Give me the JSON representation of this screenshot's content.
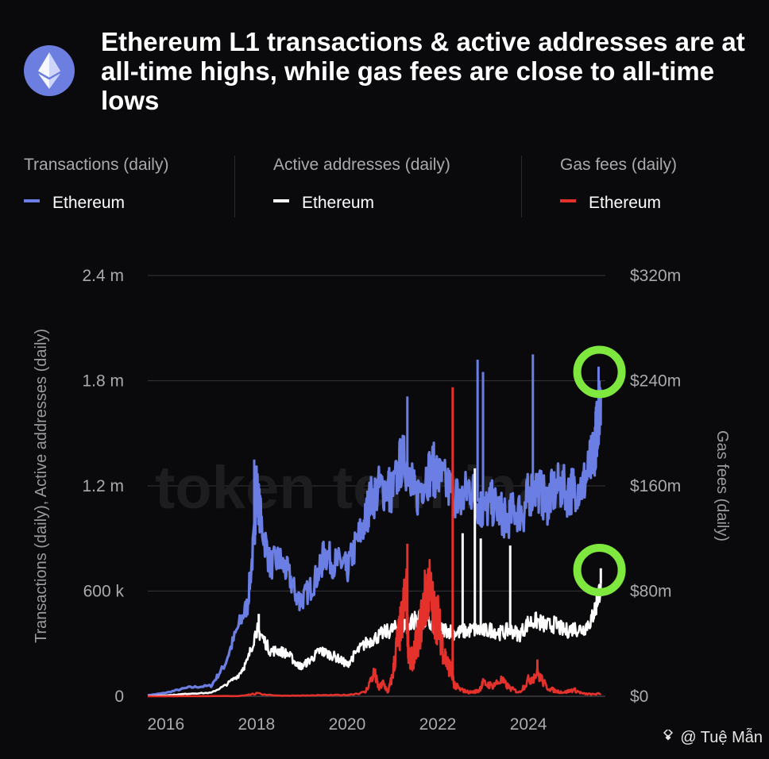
{
  "header": {
    "title": "Ethereum L1 transactions & active addresses are at all-time highs, while gas fees are close to all-time lows",
    "logo_icon": "ethereum-icon",
    "logo_color": "#6c7fe0"
  },
  "legend": {
    "groups": [
      {
        "title": "Transactions (daily)",
        "item": "Ethereum",
        "color": "#6b7ee3"
      },
      {
        "title": "Active addresses (daily)",
        "item": "Ethereum",
        "color": "#ffffff"
      },
      {
        "title": "Gas fees (daily)",
        "item": "Ethereum",
        "color": "#e5312c"
      }
    ]
  },
  "watermark": {
    "text": "token terminal"
  },
  "author": {
    "text": "@ Tuệ Mẫn",
    "icon": "binance-square-icon"
  },
  "highlight": {
    "color": "#7ee83f"
  },
  "chart_data": {
    "type": "line",
    "title": "Ethereum L1 transactions & active addresses are at all-time highs, while gas fees are close to all-time lows",
    "ylabel": "Transactions (daily), Active addresses (daily)",
    "y2label": "Gas fees (daily)",
    "x_ticks": [
      "2016",
      "2018",
      "2020",
      "2022",
      "2024"
    ],
    "y_ticks": [
      "0",
      "600 k",
      "1.2 m",
      "1.8 m",
      "2.4 m"
    ],
    "y2_ticks": [
      "$0",
      "$80m",
      "$160m",
      "$240m",
      "$320m"
    ],
    "ylim": [
      0,
      2400000
    ],
    "y2lim": [
      0,
      320000000
    ],
    "xlim": [
      2015.6,
      2025.7
    ],
    "grid": true,
    "legend_position": "top",
    "series": [
      {
        "name": "Transactions (daily) — Ethereum",
        "axis": "left",
        "color": "#6b7ee3",
        "x": [
          2015.6,
          2016.0,
          2016.5,
          2017.0,
          2017.3,
          2017.6,
          2017.8,
          2017.95,
          2018.0,
          2018.1,
          2018.3,
          2018.5,
          2018.7,
          2018.9,
          2019.0,
          2019.2,
          2019.4,
          2019.5,
          2019.7,
          2019.9,
          2020.0,
          2020.2,
          2020.4,
          2020.5,
          2020.7,
          2020.9,
          2021.0,
          2021.2,
          2021.4,
          2021.5,
          2021.7,
          2021.9,
          2022.0,
          2022.2,
          2022.4,
          2022.5,
          2022.7,
          2022.9,
          2023.0,
          2023.2,
          2023.4,
          2023.5,
          2023.7,
          2023.9,
          2024.0,
          2024.2,
          2024.4,
          2024.5,
          2024.7,
          2024.9,
          2025.0,
          2025.2,
          2025.35,
          2025.45,
          2025.5,
          2025.55,
          2025.6
        ],
        "values": [
          5000,
          20000,
          50000,
          60000,
          180000,
          400000,
          520000,
          900000,
          1200000,
          1000000,
          750000,
          780000,
          700000,
          560000,
          550000,
          620000,
          720000,
          820000,
          760000,
          760000,
          720000,
          870000,
          1000000,
          1120000,
          1180000,
          1200000,
          1150000,
          1350000,
          1300000,
          1120000,
          1250000,
          1300000,
          1250000,
          1200000,
          1150000,
          1100000,
          1200000,
          1100000,
          1050000,
          1100000,
          1050000,
          1000000,
          1060000,
          1050000,
          1150000,
          1200000,
          1100000,
          1150000,
          1200000,
          1150000,
          1200000,
          1200000,
          1300000,
          1400000,
          1500000,
          1620000,
          1750000
        ]
      },
      {
        "name": "Active addresses (daily) — Ethereum",
        "axis": "left",
        "color": "#ffffff",
        "x": [
          2015.6,
          2016.0,
          2016.5,
          2017.0,
          2017.3,
          2017.6,
          2017.8,
          2018.0,
          2018.1,
          2018.3,
          2018.5,
          2018.7,
          2018.9,
          2019.0,
          2019.2,
          2019.4,
          2019.5,
          2019.7,
          2019.9,
          2020.0,
          2020.2,
          2020.4,
          2020.6,
          2020.8,
          2021.0,
          2021.2,
          2021.4,
          2021.5,
          2021.7,
          2021.9,
          2022.0,
          2022.2,
          2022.4,
          2022.6,
          2022.8,
          2023.0,
          2023.2,
          2023.4,
          2023.6,
          2023.8,
          2024.0,
          2024.2,
          2024.4,
          2024.6,
          2024.8,
          2025.0,
          2025.2,
          2025.4,
          2025.5,
          2025.6
        ],
        "values": [
          1000,
          5000,
          15000,
          20000,
          60000,
          120000,
          200000,
          380000,
          350000,
          260000,
          260000,
          240000,
          180000,
          170000,
          210000,
          260000,
          250000,
          230000,
          200000,
          180000,
          250000,
          300000,
          330000,
          360000,
          380000,
          400000,
          420000,
          440000,
          430000,
          400000,
          380000,
          380000,
          360000,
          370000,
          380000,
          370000,
          380000,
          360000,
          380000,
          350000,
          420000,
          430000,
          400000,
          410000,
          370000,
          390000,
          380000,
          440000,
          520000,
          640000
        ]
      },
      {
        "name": "Gas fees (daily) — Ethereum",
        "axis": "right",
        "color": "#e5312c",
        "x": [
          2015.6,
          2017.6,
          2018.0,
          2018.5,
          2019.0,
          2019.5,
          2020.0,
          2020.4,
          2020.6,
          2020.7,
          2020.8,
          2020.9,
          2021.0,
          2021.1,
          2021.2,
          2021.3,
          2021.35,
          2021.4,
          2021.5,
          2021.6,
          2021.7,
          2021.8,
          2021.9,
          2022.0,
          2022.1,
          2022.2,
          2022.3,
          2022.35,
          2022.4,
          2022.5,
          2022.7,
          2022.9,
          2023.0,
          2023.2,
          2023.4,
          2023.6,
          2023.8,
          2024.0,
          2024.2,
          2024.4,
          2024.6,
          2024.8,
          2025.0,
          2025.2,
          2025.4,
          2025.6
        ],
        "values": [
          0,
          200000,
          2000000,
          500000,
          500000,
          800000,
          1000000,
          3000000,
          18000000,
          6000000,
          10000000,
          3000000,
          15000000,
          40000000,
          55000000,
          80000000,
          40000000,
          25000000,
          35000000,
          50000000,
          70000000,
          85000000,
          65000000,
          60000000,
          40000000,
          25000000,
          20000000,
          10000000,
          8000000,
          5000000,
          3000000,
          4000000,
          10000000,
          8000000,
          12000000,
          6000000,
          3000000,
          12000000,
          18000000,
          7000000,
          4000000,
          3000000,
          5000000,
          2000000,
          1500000,
          2000000
        ]
      }
    ],
    "spikes": [
      {
        "series": 0,
        "x": 2017.95,
        "value": 1350000
      },
      {
        "series": 0,
        "x": 2021.33,
        "value": 1710000
      },
      {
        "series": 0,
        "x": 2022.88,
        "value": 1920000
      },
      {
        "series": 0,
        "x": 2023.0,
        "value": 1850000
      },
      {
        "series": 0,
        "x": 2024.1,
        "value": 1950000
      },
      {
        "series": 0,
        "x": 2025.55,
        "value": 1880000
      },
      {
        "series": 1,
        "x": 2018.05,
        "value": 470000
      },
      {
        "series": 1,
        "x": 2022.55,
        "value": 930000
      },
      {
        "series": 1,
        "x": 2022.82,
        "value": 1300000
      },
      {
        "series": 1,
        "x": 2022.95,
        "value": 900000
      },
      {
        "series": 1,
        "x": 2023.6,
        "value": 860000
      },
      {
        "series": 1,
        "x": 2025.6,
        "value": 730000
      },
      {
        "series": 2,
        "x": 2021.33,
        "value": 116000000
      },
      {
        "series": 2,
        "x": 2022.33,
        "value": 235000000
      },
      {
        "series": 2,
        "x": 2024.2,
        "value": 28000000
      }
    ],
    "highlights": [
      {
        "x": 2025.57,
        "y": 1850000
      },
      {
        "x": 2025.57,
        "y": 720000
      }
    ]
  }
}
